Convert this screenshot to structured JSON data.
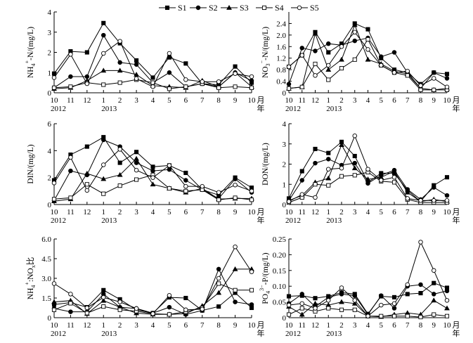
{
  "legend": [
    {
      "name": "S1",
      "marker": "square-filled"
    },
    {
      "name": "S2",
      "marker": "circle-filled"
    },
    {
      "name": "S3",
      "marker": "triangle-filled"
    },
    {
      "name": "S4",
      "marker": "square-open"
    },
    {
      "name": "S5",
      "marker": "circle-open"
    }
  ],
  "x_ticks": [
    "10",
    "11",
    "12",
    "1",
    "2",
    "3",
    "4",
    "5",
    "6",
    "7",
    "8",
    "9",
    "10"
  ],
  "year_labels": [
    "2012",
    "2013"
  ],
  "x_unit": {
    "month": "月",
    "year": "年"
  },
  "chart_data": [
    {
      "type": "line",
      "ylabel": "NH4+-N/(mg/L)",
      "ylabel_parts": {
        "main": "NH",
        "sub": "4",
        "sup": "+",
        "tail": "-N/(mg/L)"
      },
      "ylim": [
        0,
        4
      ],
      "yticks": [
        "0",
        "1",
        "2",
        "3",
        "4"
      ],
      "series": [
        {
          "name": "S1",
          "values": [
            0.95,
            2.05,
            2.0,
            3.45,
            2.45,
            1.6,
            0.75,
            1.75,
            1.45,
            0.45,
            0.4,
            1.3,
            0.5
          ]
        },
        {
          "name": "S2",
          "values": [
            0.25,
            0.8,
            0.8,
            2.85,
            1.5,
            1.4,
            0.5,
            1.0,
            0.3,
            0.45,
            0.3,
            1.0,
            0.6
          ]
        },
        {
          "name": "S3",
          "values": [
            0.2,
            0.25,
            0.6,
            1.1,
            1.1,
            0.9,
            0.35,
            0.3,
            0.25,
            0.6,
            0.3,
            1.0,
            0.3
          ]
        },
        {
          "name": "S4",
          "values": [
            0.25,
            0.3,
            0.5,
            0.4,
            0.5,
            0.65,
            0.5,
            0.2,
            0.3,
            0.45,
            0.25,
            0.3,
            0.25
          ]
        },
        {
          "name": "S5",
          "values": [
            0.75,
            1.9,
            0.45,
            1.95,
            2.55,
            0.7,
            0.3,
            1.95,
            0.65,
            0.55,
            0.55,
            0.95,
            0.8
          ]
        }
      ]
    },
    {
      "type": "line",
      "ylabel": "NO3--N/(mg/L)",
      "ylabel_parts": {
        "main": "NO",
        "sub": "3",
        "sup": "−",
        "tail": "-N/(mg/L)"
      },
      "ylim": [
        0,
        2.8
      ],
      "yticks": [
        "0",
        "0.4",
        "0.8",
        "1.2",
        "1.6",
        "2.0",
        "2.4"
      ],
      "series": [
        {
          "name": "S1",
          "values": [
            0.9,
            1.3,
            2.1,
            1.4,
            1.7,
            2.4,
            2.2,
            1.2,
            0.8,
            0.7,
            0.3,
            0.7,
            0.65
          ]
        },
        {
          "name": "S2",
          "values": [
            0.3,
            1.55,
            1.45,
            1.7,
            1.65,
            1.8,
            1.9,
            1.25,
            1.4,
            0.7,
            0.15,
            0.7,
            0.5
          ]
        },
        {
          "name": "S3",
          "values": [
            0.15,
            0.2,
            2.05,
            0.8,
            1.15,
            2.35,
            1.15,
            1.0,
            0.75,
            0.65,
            0.15,
            0.1,
            0.15
          ]
        },
        {
          "name": "S4",
          "values": [
            0.15,
            0.2,
            1.0,
            0.45,
            0.85,
            1.15,
            1.85,
            0.95,
            0.7,
            0.6,
            0.1,
            0.1,
            0.1
          ]
        },
        {
          "name": "S5",
          "values": [
            0.9,
            1.3,
            0.6,
            0.95,
            1.6,
            2.1,
            1.5,
            0.95,
            0.7,
            0.75,
            0.25,
            0.5,
            0.2
          ]
        }
      ]
    },
    {
      "type": "line",
      "ylabel": "DIN/(mg/L)",
      "ylim": [
        0,
        6
      ],
      "yticks": [
        "0",
        "2",
        "4",
        "6"
      ],
      "series": [
        {
          "name": "S1",
          "values": [
            1.8,
            3.7,
            4.3,
            5.0,
            3.1,
            3.9,
            2.8,
            2.9,
            2.35,
            1.1,
            0.7,
            2.0,
            1.25
          ]
        },
        {
          "name": "S2",
          "values": [
            0.3,
            2.5,
            2.2,
            4.8,
            4.3,
            3.1,
            2.5,
            2.6,
            1.8,
            1.1,
            0.45,
            1.9,
            0.9
          ]
        },
        {
          "name": "S3",
          "values": [
            0.25,
            0.4,
            2.3,
            1.9,
            2.2,
            3.4,
            1.5,
            1.2,
            0.9,
            1.2,
            0.4,
            0.45,
            0.45
          ]
        },
        {
          "name": "S4",
          "values": [
            0.4,
            0.5,
            1.5,
            0.8,
            1.4,
            1.85,
            2.2,
            1.2,
            1.0,
            1.1,
            0.35,
            0.5,
            0.35
          ]
        },
        {
          "name": "S5",
          "values": [
            1.6,
            3.5,
            1.05,
            2.95,
            4.1,
            2.55,
            2.0,
            2.9,
            1.35,
            1.35,
            0.9,
            1.45,
            1.0
          ]
        }
      ]
    },
    {
      "type": "line",
      "ylabel": "DON/(mg/L)",
      "ylim": [
        0,
        4
      ],
      "yticks": [
        "0",
        "1",
        "2",
        "3",
        "4"
      ],
      "series": [
        {
          "name": "S1",
          "values": [
            0.3,
            1.65,
            2.75,
            2.55,
            3.1,
            2.4,
            1.1,
            1.55,
            1.55,
            0.7,
            0.15,
            0.95,
            1.35
          ]
        },
        {
          "name": "S2",
          "values": [
            0.2,
            1.2,
            2.05,
            2.25,
            1.95,
            2.05,
            1.05,
            1.45,
            1.7,
            0.75,
            0.25,
            0.85,
            0.45
          ]
        },
        {
          "name": "S3",
          "values": [
            0.2,
            0.45,
            1.1,
            1.3,
            2.95,
            1.8,
            1.25,
            1.35,
            1.65,
            0.6,
            0.15,
            0.25,
            0.15
          ]
        },
        {
          "name": "S4",
          "values": [
            0.1,
            0.35,
            1.0,
            0.95,
            1.4,
            1.45,
            1.6,
            1.15,
            1.1,
            0.25,
            0.1,
            0.1,
            0.1
          ]
        },
        {
          "name": "S5",
          "values": [
            0.15,
            0.5,
            0.35,
            1.75,
            1.8,
            3.4,
            1.75,
            1.2,
            1.35,
            0.3,
            0.2,
            0.2,
            0.2
          ]
        }
      ]
    },
    {
      "type": "line",
      "ylabel": "NH4+:NOx比",
      "ylabel_parts": {
        "main": "NH",
        "sub": "4",
        "sup": "+",
        "tail": ":NO",
        "sub2": "x",
        "tail2": "比"
      },
      "ylim": [
        0,
        6
      ],
      "yticks": [
        "0",
        "1.5",
        "3.0",
        "4.5",
        "6.0"
      ],
      "series": [
        {
          "name": "S1",
          "values": [
            1.0,
            1.15,
            0.8,
            2.1,
            1.4,
            0.6,
            0.35,
            1.55,
            1.5,
            0.55,
            0.85,
            1.9,
            0.75
          ]
        },
        {
          "name": "S2",
          "values": [
            0.7,
            0.45,
            0.45,
            1.8,
            0.8,
            0.7,
            0.35,
            0.8,
            0.25,
            0.55,
            3.7,
            1.2,
            1.0
          ]
        },
        {
          "name": "S3",
          "values": [
            1.2,
            1.3,
            0.3,
            1.3,
            0.8,
            0.35,
            0.25,
            0.25,
            0.3,
            0.9,
            1.9,
            3.7,
            3.7
          ]
        },
        {
          "name": "S4",
          "values": [
            0.6,
            1.1,
            0.35,
            0.85,
            0.6,
            0.5,
            0.3,
            0.25,
            0.45,
            0.75,
            2.6,
            2.1,
            2.1
          ]
        },
        {
          "name": "S5",
          "values": [
            2.6,
            1.8,
            0.75,
            1.55,
            1.2,
            0.7,
            0.3,
            1.7,
            0.6,
            0.65,
            3.0,
            5.4,
            3.5
          ]
        }
      ]
    },
    {
      "type": "line",
      "ylabel": "PO43--P/(mg/L)",
      "ylabel_parts": {
        "main": "PO",
        "sub": "4",
        "sup": "3−",
        "tail": "-P/(mg/L)"
      },
      "ylim": [
        0,
        0.25
      ],
      "yticks": [
        "0",
        "0.05",
        "0.10",
        "0.15",
        "0.20",
        "0.25"
      ],
      "series": [
        {
          "name": "S1",
          "values": [
            0.068,
            0.07,
            0.062,
            0.068,
            0.08,
            0.075,
            0.012,
            0.068,
            0.065,
            0.075,
            0.078,
            0.11,
            0.095
          ]
        },
        {
          "name": "S2",
          "values": [
            0.045,
            0.075,
            0.035,
            0.065,
            0.075,
            0.07,
            0.01,
            0.07,
            0.03,
            0.1,
            0.105,
            0.075,
            0.085
          ]
        },
        {
          "name": "S3",
          "values": [
            0.035,
            0.01,
            0.045,
            0.04,
            0.05,
            0.045,
            0.005,
            0.003,
            0.01,
            0.015,
            0.01,
            0.055,
            0.03
          ]
        },
        {
          "name": "S4",
          "values": [
            0.01,
            0.03,
            0.02,
            0.03,
            0.025,
            0.025,
            0.005,
            0.005,
            0.005,
            0.005,
            0.002,
            0.01,
            0.005
          ]
        },
        {
          "name": "S5",
          "values": [
            0.04,
            0.045,
            0.03,
            0.055,
            0.095,
            0.055,
            0.005,
            0.04,
            0.045,
            0.105,
            0.24,
            0.15,
            0.055
          ]
        }
      ]
    }
  ]
}
